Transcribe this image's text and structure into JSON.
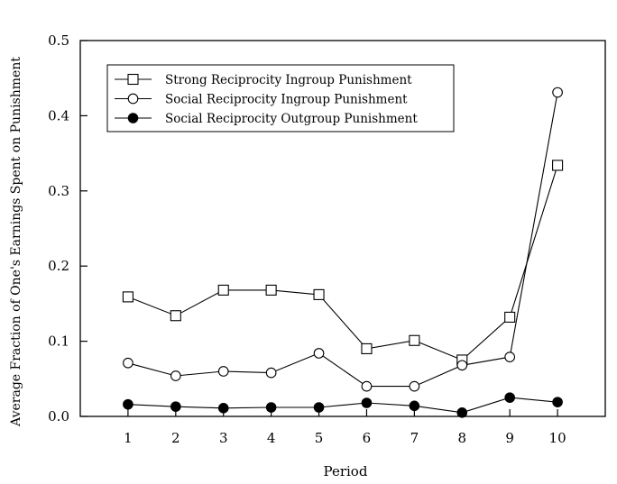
{
  "chart_data": {
    "type": "line",
    "xlabel": "Period",
    "ylabel": "Average Fraction of One's Earnings Spent on Punishment",
    "x": [
      1,
      2,
      3,
      4,
      5,
      6,
      7,
      8,
      9,
      10
    ],
    "xlim": [
      0,
      11
    ],
    "ylim": [
      0,
      0.5
    ],
    "xticks": [
      "1",
      "2",
      "3",
      "4",
      "5",
      "6",
      "7",
      "8",
      "9",
      "10"
    ],
    "yticks": [
      "0.0",
      "0.1",
      "0.2",
      "0.3",
      "0.4",
      "0.5"
    ],
    "grid": false,
    "legend_position": "top-left",
    "series": [
      {
        "name": "Strong Reciprocity Ingroup Punishment",
        "marker": "open-square",
        "values": [
          0.159,
          0.134,
          0.168,
          0.168,
          0.162,
          0.09,
          0.101,
          0.075,
          0.132,
          0.334
        ]
      },
      {
        "name": "Social Reciprocity Ingroup Punishment",
        "marker": "open-circle",
        "values": [
          0.071,
          0.054,
          0.06,
          0.058,
          0.084,
          0.04,
          0.04,
          0.068,
          0.079,
          0.431
        ]
      },
      {
        "name": "Social Reciprocity Outgroup Punishment",
        "marker": "filled-circle",
        "values": [
          0.016,
          0.013,
          0.011,
          0.012,
          0.012,
          0.018,
          0.014,
          0.005,
          0.025,
          0.019
        ]
      }
    ]
  }
}
